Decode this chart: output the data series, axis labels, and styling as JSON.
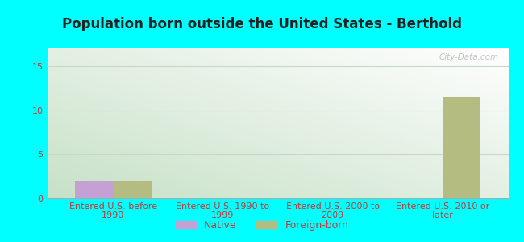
{
  "title": "Population born outside the United States - Berthold",
  "categories": [
    "Entered U.S. before\n1990",
    "Entered U.S. 1990 to\n1999",
    "Entered U.S. 2000 to\n2009",
    "Entered U.S. 2010 or\nlater"
  ],
  "native_values": [
    2,
    0,
    0,
    0
  ],
  "foreign_values": [
    2,
    0,
    0,
    11.5
  ],
  "native_color": "#c4a0d4",
  "foreign_color": "#b5bc82",
  "ylim": [
    0,
    17
  ],
  "yticks": [
    0,
    5,
    10,
    15
  ],
  "bar_width": 0.35,
  "background_color": "#00ffff",
  "plot_bg_left": "#cde0d0",
  "plot_bg_right": "#f0f8f0",
  "grid_color": "#c8d8c8",
  "title_color": "#222222",
  "tick_label_color": "#cc3333",
  "watermark_text": "City-Data.com",
  "legend_native": "Native",
  "legend_foreign": "Foreign-born",
  "title_fontsize": 12,
  "tick_fontsize": 8,
  "legend_fontsize": 9
}
